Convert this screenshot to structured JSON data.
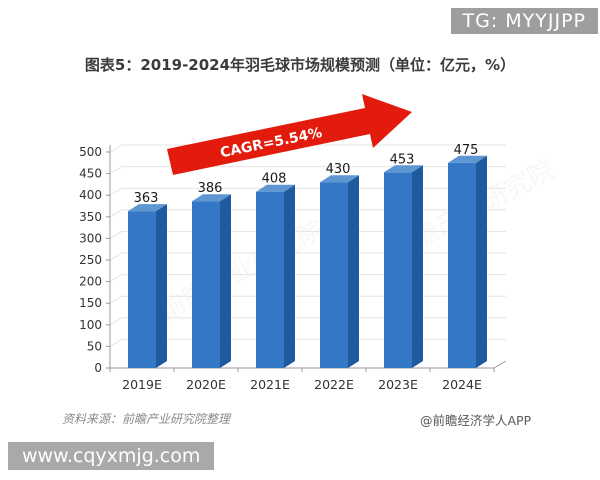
{
  "badge": {
    "text": "TG: MYYJJPP"
  },
  "title": "图表5：2019-2024年羽毛球市场规模预测（单位：亿元，%）",
  "chart_data": {
    "type": "bar",
    "title": "2019-2024年羽毛球市场规模预测",
    "unit": "亿元",
    "categories": [
      "2019E",
      "2020E",
      "2021E",
      "2022E",
      "2023E",
      "2024E"
    ],
    "values": [
      363,
      386,
      408,
      430,
      453,
      475
    ],
    "ylim": [
      0,
      500
    ],
    "ytick_step": 50,
    "grid": true,
    "style": "3d-column",
    "annotation": {
      "text": "CAGR=5.54%",
      "shape": "up-right-arrow"
    },
    "colors": {
      "bar_front": "#3377C6",
      "bar_side": "#1F5A9E",
      "bar_top": "#5E96D2",
      "arrow": "#E31B0C",
      "gridline": "#E4E4E4",
      "axis": "#9A9A9A",
      "tick_label": "#333333",
      "value_label": "#1A1A1A"
    }
  },
  "footer": {
    "source": "资料来源：前瞻产业研究院整理",
    "credit": "@前瞻经济学人APP"
  },
  "watermark": {
    "text": "www.cqyxmjg.com"
  },
  "bg_watermark": "前瞻产业研究院"
}
